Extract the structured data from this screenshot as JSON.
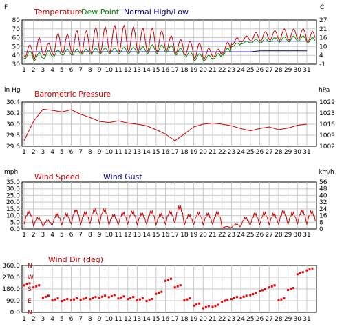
{
  "chart_data": [
    {
      "type": "line",
      "left_unit": "F",
      "right_unit": "C",
      "legend": [
        "Temperature",
        "Dew Point",
        "Normal High/Low"
      ],
      "ylim": [
        30,
        80
      ],
      "yticks": [
        "80",
        "70",
        "60",
        "50",
        "40",
        "30"
      ],
      "yticks_right": [
        "27",
        "21",
        "16",
        "10",
        "4",
        "-1"
      ],
      "x": [
        "1",
        "2",
        "3",
        "4",
        "5",
        "6",
        "7",
        "8",
        "9",
        "10",
        "11",
        "12",
        "13",
        "14",
        "15",
        "16",
        "17",
        "18",
        "19",
        "20",
        "21",
        "22",
        "23",
        "24",
        "25",
        "26",
        "27",
        "28",
        "29",
        "30",
        "31"
      ],
      "temperature_daily_high": [
        52,
        60,
        54,
        65,
        64,
        68,
        68,
        72,
        72,
        74,
        74,
        72,
        71,
        71,
        68,
        62,
        58,
        56,
        54,
        48,
        47,
        55,
        60,
        62,
        66,
        67,
        68,
        70,
        70,
        70,
        67
      ],
      "temperature_daily_low": [
        38,
        36,
        40,
        40,
        42,
        42,
        42,
        42,
        43,
        43,
        44,
        44,
        44,
        44,
        44,
        45,
        42,
        40,
        36,
        36,
        38,
        42,
        52,
        55,
        56,
        56,
        57,
        57,
        57,
        58,
        55
      ],
      "dew_point_daily_high": [
        45,
        43,
        46,
        46,
        47,
        47,
        47,
        48,
        48,
        48,
        49,
        49,
        50,
        52,
        52,
        51,
        48,
        44,
        42,
        40,
        42,
        48,
        54,
        56,
        58,
        59,
        60,
        61,
        62,
        62,
        60
      ],
      "dew_point_daily_low": [
        36,
        34,
        36,
        38,
        40,
        40,
        41,
        41,
        42,
        42,
        42,
        42,
        42,
        42,
        42,
        43,
        40,
        38,
        34,
        34,
        36,
        40,
        50,
        53,
        54,
        54,
        55,
        55,
        55,
        56,
        54
      ],
      "normal_high": [
        56,
        56,
        56,
        56,
        56,
        56,
        56,
        56,
        56,
        56,
        56,
        56,
        56,
        56,
        56,
        56,
        56,
        56,
        56,
        56,
        56,
        56,
        56,
        56,
        56,
        56,
        56,
        56,
        56,
        56,
        56
      ],
      "normal_low": [
        44,
        44,
        44,
        44,
        44,
        44,
        44,
        44,
        44,
        44,
        44,
        44,
        44,
        44,
        44,
        44,
        44,
        44,
        44,
        44,
        44,
        44,
        44,
        44,
        44,
        45,
        45,
        45,
        45,
        45,
        45
      ]
    },
    {
      "type": "line",
      "left_unit": "in Hg",
      "right_unit": "hPa",
      "legend": [
        "Barometric Pressure"
      ],
      "ylim": [
        29.6,
        30.4
      ],
      "yticks": [
        "30.4",
        "30.2",
        "30.0",
        "29.8",
        "29.6"
      ],
      "yticks_right": [
        "1029",
        "1023",
        "1016",
        "1009",
        "1002"
      ],
      "x": [
        "1",
        "2",
        "3",
        "4",
        "5",
        "6",
        "7",
        "8",
        "9",
        "10",
        "11",
        "12",
        "13",
        "14",
        "15",
        "16",
        "17",
        "18",
        "19",
        "20",
        "21",
        "22",
        "23",
        "24",
        "25",
        "26",
        "27",
        "28",
        "29",
        "30",
        "31"
      ],
      "pressure": [
        29.7,
        30.05,
        30.27,
        30.25,
        30.22,
        30.26,
        30.18,
        30.12,
        30.05,
        30.03,
        30.06,
        30.02,
        30.0,
        29.97,
        29.9,
        29.82,
        29.7,
        29.82,
        29.95,
        30.0,
        30.02,
        30.0,
        29.97,
        29.92,
        29.88,
        29.92,
        29.95,
        29.9,
        29.93,
        29.98,
        30.0
      ]
    },
    {
      "type": "line",
      "left_unit": "mph",
      "right_unit": "km/h",
      "legend": [
        "Wind Speed",
        "Wind Gust"
      ],
      "ylim": [
        0,
        35
      ],
      "yticks": [
        "35.0",
        "30.0",
        "25.0",
        "20.0",
        "15.0",
        "10.0",
        "5.0",
        "0.0"
      ],
      "yticks_right": [
        "56",
        "48",
        "40",
        "32",
        "24",
        "16",
        "8",
        "0"
      ],
      "x": [
        "1",
        "2",
        "3",
        "4",
        "5",
        "6",
        "7",
        "8",
        "9",
        "10",
        "11",
        "12",
        "13",
        "14",
        "15",
        "16",
        "17",
        "18",
        "19",
        "20",
        "21",
        "22",
        "23",
        "24",
        "25",
        "26",
        "27",
        "28",
        "29",
        "30",
        "31"
      ],
      "wind_speed_daily_peak": [
        14,
        9,
        7,
        12,
        12,
        15,
        13,
        16,
        16,
        11,
        13,
        14,
        12,
        14,
        12,
        14,
        18,
        11,
        13,
        12,
        13,
        2,
        4,
        9,
        12,
        13,
        12,
        14,
        13,
        15,
        14
      ]
    },
    {
      "type": "scatter",
      "legend": [
        "Wind Dir (deg)"
      ],
      "ylim": [
        0,
        360
      ],
      "yticks": [
        "360.0",
        "270.0",
        "180.0",
        "90.0",
        "0.0"
      ],
      "direction_labels": [
        "N",
        "W",
        "S",
        "E",
        "N"
      ],
      "x": [
        "1",
        "2",
        "3",
        "4",
        "5",
        "6",
        "7",
        "8",
        "9",
        "10",
        "11",
        "12",
        "13",
        "14",
        "15",
        "16",
        "17",
        "18",
        "19",
        "20",
        "21",
        "22",
        "23",
        "24",
        "25",
        "26",
        "27",
        "28",
        "29",
        "30",
        "31"
      ],
      "wind_dir_daily": [
        215,
        200,
        120,
        100,
        95,
        100,
        105,
        110,
        120,
        125,
        115,
        110,
        100,
        95,
        150,
        250,
        200,
        100,
        60,
        40,
        50,
        90,
        110,
        120,
        140,
        170,
        200,
        100,
        180,
        300,
        330
      ]
    }
  ]
}
